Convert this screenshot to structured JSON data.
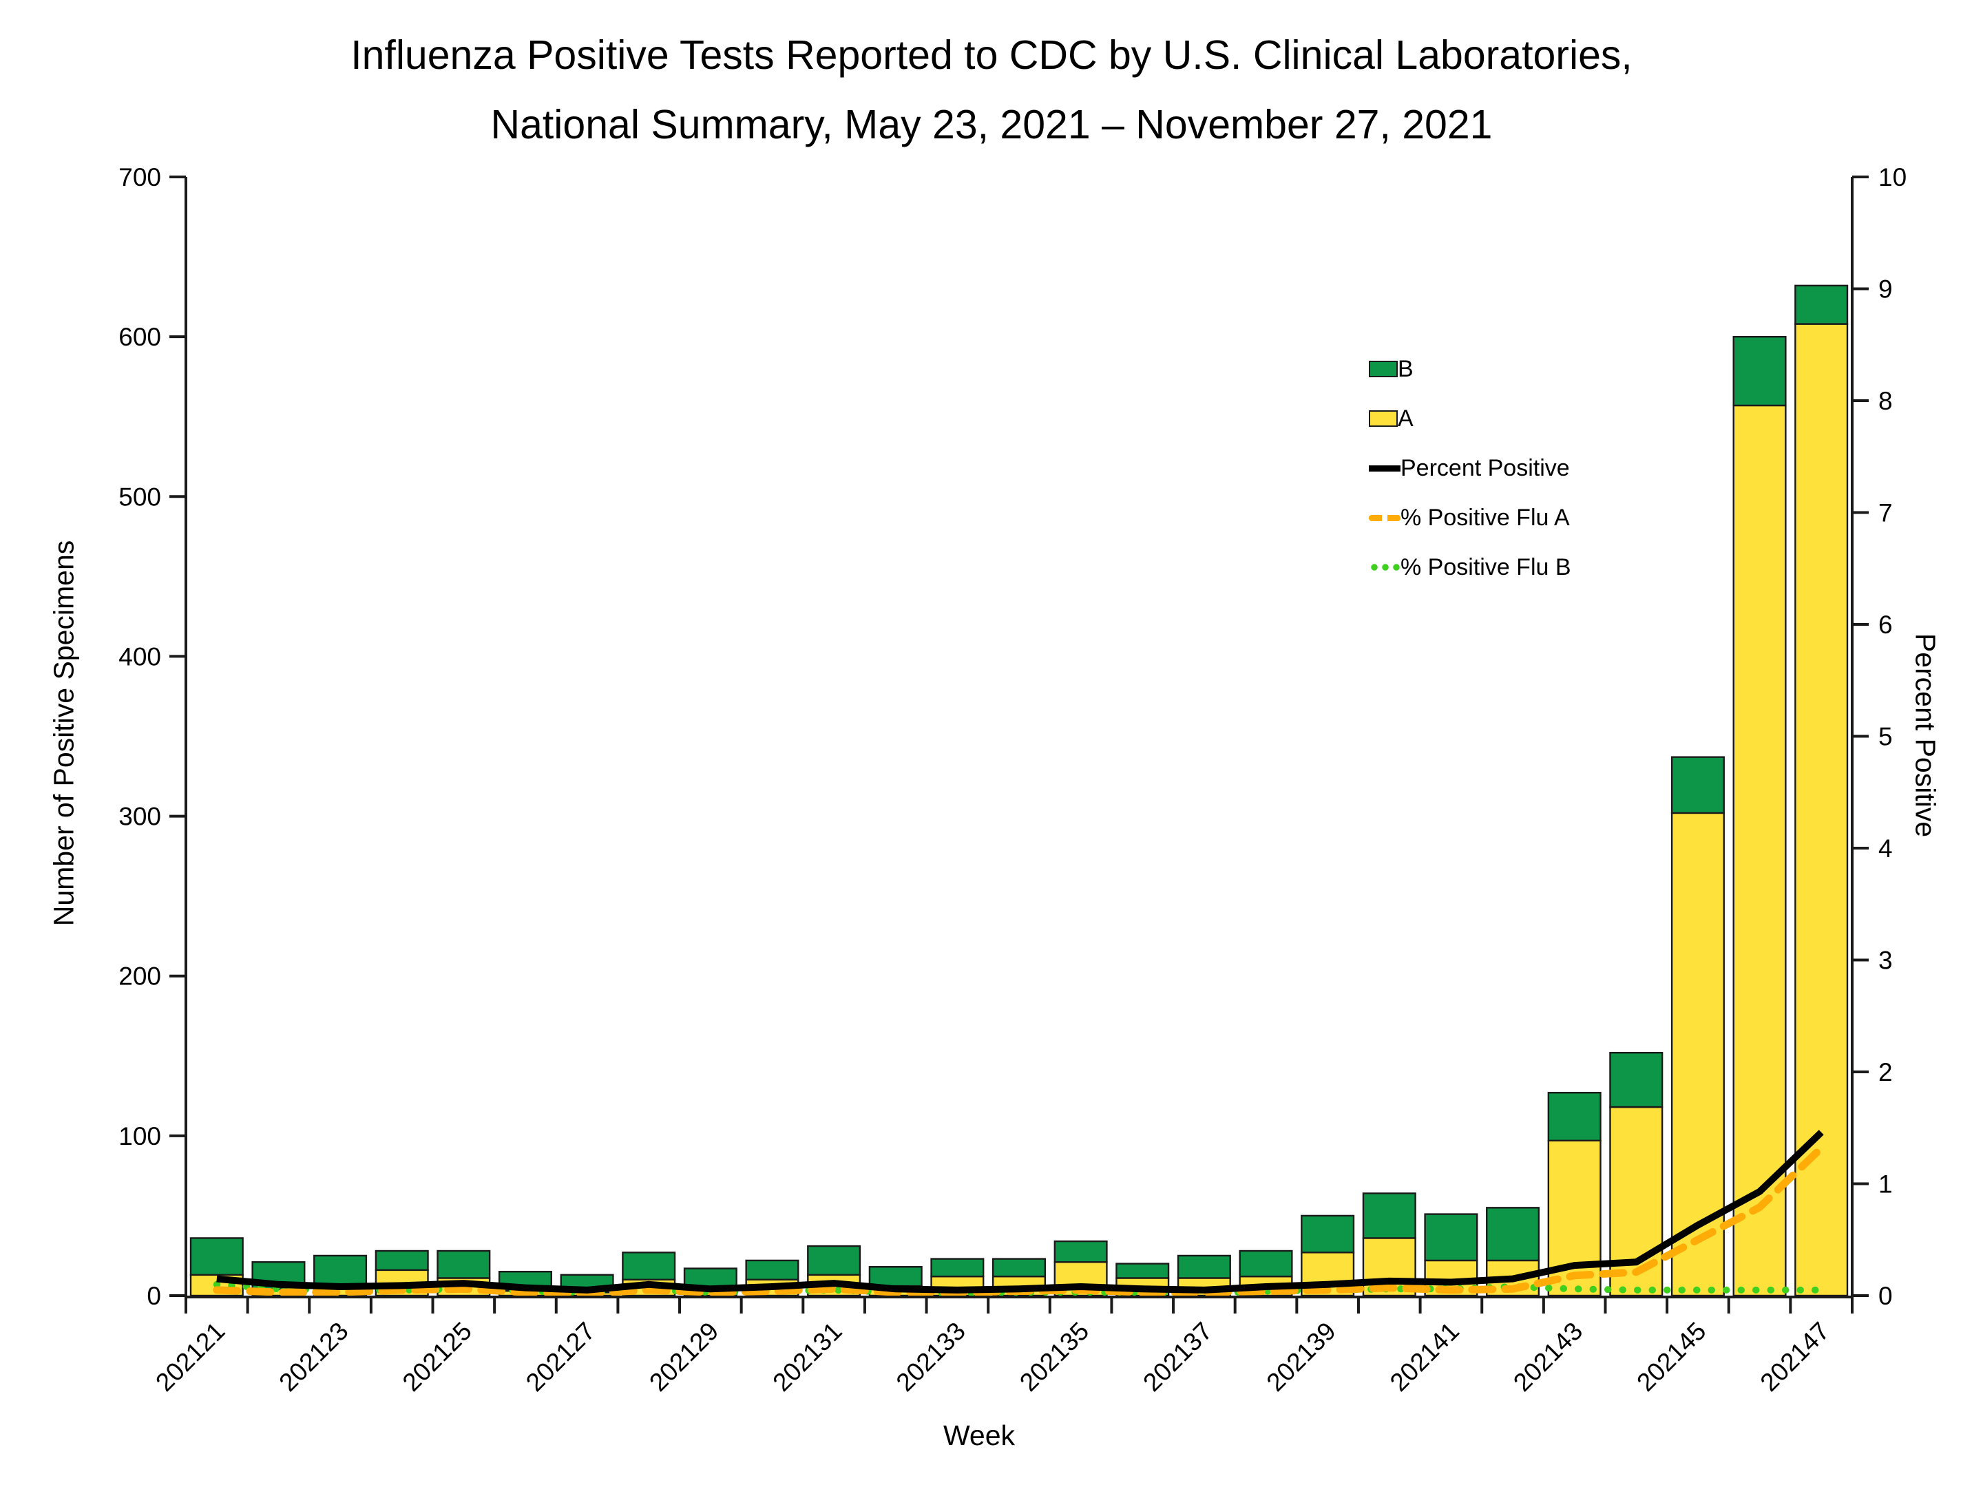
{
  "title": {
    "line1": "Influenza Positive Tests Reported to CDC by U.S. Clinical Laboratories,",
    "line2": "National Summary, May 23, 2021 – November 27, 2021"
  },
  "legend": {
    "items": [
      {
        "id": "b",
        "label": "B",
        "type": "swatch",
        "color": "#0d9648"
      },
      {
        "id": "a",
        "label": "A",
        "type": "swatch",
        "color": "#ffe13b"
      },
      {
        "id": "percent-positive",
        "label": "Percent Positive",
        "type": "line",
        "style": "solid",
        "color": "#000000"
      },
      {
        "id": "pct-positive-flu-a",
        "label": "% Positive Flu A",
        "type": "line",
        "style": "dashed",
        "color": "#ffac08"
      },
      {
        "id": "pct-positive-flu-b",
        "label": "% Positive Flu B",
        "type": "line",
        "style": "dotted",
        "color": "#3fcf1f"
      }
    ]
  },
  "chart_data": {
    "type": "combo-stacked-bar-line",
    "title": "Influenza Positive Tests Reported to CDC by U.S. Clinical Laboratories, National Summary, May 23, 2021 – November 27, 2021",
    "xlabel": "Week",
    "ylabel_left": "Number of Positive Specimens",
    "ylabel_right": "Percent Positive",
    "ylim_left": [
      0,
      700
    ],
    "yticks_left": [
      0,
      100,
      200,
      300,
      400,
      500,
      600,
      700
    ],
    "ylim_right": [
      0,
      10
    ],
    "yticks_right": [
      0,
      1,
      2,
      3,
      4,
      5,
      6,
      7,
      8,
      9,
      10
    ],
    "grid": false,
    "legend_position": "inside-upper-right",
    "categories": [
      "202121",
      "202122",
      "202123",
      "202124",
      "202125",
      "202126",
      "202127",
      "202128",
      "202129",
      "202130",
      "202131",
      "202132",
      "202133",
      "202134",
      "202135",
      "202136",
      "202137",
      "202138",
      "202139",
      "202140",
      "202141",
      "202142",
      "202143",
      "202144",
      "202145",
      "202146",
      "202147"
    ],
    "xtick_labels_shown": [
      "202121",
      "202123",
      "202125",
      "202127",
      "202129",
      "202131",
      "202133",
      "202135",
      "202137",
      "202139",
      "202141",
      "202143",
      "202145",
      "202147"
    ],
    "series": [
      {
        "name": "A",
        "type": "bar",
        "stack": "specimens",
        "axis": "left",
        "color": "#ffe13b",
        "values": [
          13,
          4,
          5,
          16,
          11,
          3,
          2,
          10,
          5,
          10,
          13,
          6,
          12,
          12,
          21,
          11,
          11,
          12,
          27,
          36,
          22,
          22,
          97,
          118,
          302,
          557,
          608
        ]
      },
      {
        "name": "B",
        "type": "bar",
        "stack": "specimens",
        "axis": "left",
        "color": "#0d9648",
        "values": [
          23,
          17,
          20,
          12,
          17,
          12,
          11,
          17,
          12,
          12,
          18,
          12,
          11,
          11,
          13,
          9,
          14,
          16,
          23,
          28,
          29,
          33,
          30,
          34,
          35,
          43,
          24
        ]
      },
      {
        "name": "Percent Positive",
        "type": "line",
        "style": "solid",
        "axis": "right",
        "color": "#000000",
        "values": [
          0.15,
          0.1,
          0.08,
          0.09,
          0.11,
          0.07,
          0.05,
          0.1,
          0.06,
          0.08,
          0.11,
          0.06,
          0.05,
          0.06,
          0.08,
          0.06,
          0.05,
          0.08,
          0.1,
          0.13,
          0.12,
          0.15,
          0.27,
          0.3,
          0.63,
          0.93,
          1.46
        ]
      },
      {
        "name": "% Positive Flu A",
        "type": "line",
        "style": "dashed",
        "axis": "right",
        "color": "#ffac08",
        "values": [
          0.05,
          0.03,
          0.03,
          0.05,
          0.06,
          0.03,
          0.02,
          0.05,
          0.03,
          0.04,
          0.06,
          0.03,
          0.03,
          0.04,
          0.05,
          0.03,
          0.03,
          0.04,
          0.05,
          0.07,
          0.05,
          0.06,
          0.18,
          0.21,
          0.5,
          0.79,
          1.32
        ]
      },
      {
        "name": "% Positive Flu B",
        "type": "line",
        "style": "dotted",
        "axis": "right",
        "color": "#3fcf1f",
        "values": [
          0.1,
          0.06,
          0.05,
          0.05,
          0.06,
          0.04,
          0.03,
          0.05,
          0.03,
          0.04,
          0.05,
          0.03,
          0.02,
          0.03,
          0.03,
          0.03,
          0.02,
          0.04,
          0.05,
          0.06,
          0.06,
          0.08,
          0.06,
          0.05,
          0.05,
          0.05,
          0.05
        ]
      }
    ]
  }
}
